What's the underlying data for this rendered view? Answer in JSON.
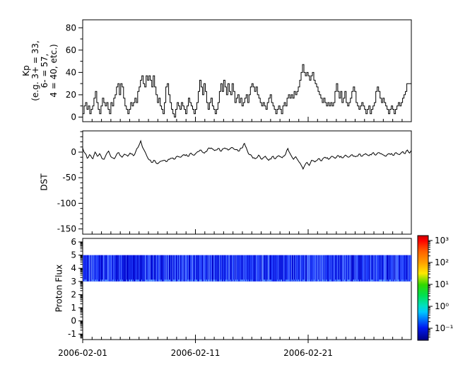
{
  "figure": {
    "background": "#ffffff",
    "labels": {
      "kp_lines": [
        "Kp",
        "(e.g. 3+ = 33,",
        "6- = 57,",
        "4 = 40, etc.)"
      ],
      "dst": "DST",
      "proton_flux": "Proton Flux"
    },
    "x_axis": {
      "tick_labels": [
        "2006-02-01",
        "2006-02-11",
        "2006-02-21"
      ],
      "tick_days": [
        0,
        10,
        20
      ],
      "span_days": 29.15
    }
  },
  "chart_data": [
    {
      "type": "line",
      "name": "kp-index",
      "style": "step",
      "line_color": "#000000",
      "ylabel": "Kp (e.g. 3+ = 33, 6- = 57, 4 = 40, etc.)",
      "yticks": [
        0,
        20,
        40,
        60,
        80
      ],
      "yminor_step": 10,
      "ylim": [
        -4.1,
        87.1
      ],
      "x_start": "2006-02-01",
      "x_step_hours": 3,
      "values": [
        3,
        10,
        13,
        7,
        10,
        3,
        7,
        10,
        17,
        23,
        13,
        7,
        3,
        10,
        17,
        13,
        10,
        13,
        7,
        3,
        13,
        10,
        17,
        20,
        27,
        30,
        20,
        30,
        27,
        17,
        10,
        7,
        3,
        7,
        13,
        10,
        13,
        17,
        13,
        23,
        27,
        33,
        37,
        30,
        27,
        37,
        33,
        37,
        33,
        27,
        37,
        27,
        20,
        13,
        17,
        10,
        7,
        3,
        13,
        27,
        30,
        20,
        13,
        7,
        3,
        0,
        7,
        13,
        10,
        7,
        13,
        10,
        7,
        3,
        10,
        17,
        13,
        10,
        7,
        3,
        7,
        13,
        23,
        33,
        27,
        20,
        30,
        23,
        13,
        7,
        13,
        17,
        10,
        7,
        3,
        7,
        13,
        23,
        30,
        23,
        33,
        27,
        20,
        30,
        23,
        20,
        30,
        23,
        13,
        17,
        20,
        13,
        17,
        10,
        13,
        17,
        20,
        13,
        20,
        27,
        30,
        27,
        23,
        27,
        20,
        17,
        13,
        10,
        13,
        10,
        7,
        13,
        17,
        20,
        13,
        10,
        7,
        3,
        7,
        10,
        7,
        3,
        10,
        13,
        10,
        17,
        20,
        17,
        20,
        17,
        23,
        20,
        23,
        27,
        33,
        40,
        47,
        40,
        37,
        40,
        37,
        33,
        37,
        40,
        33,
        30,
        27,
        23,
        20,
        17,
        13,
        17,
        13,
        10,
        13,
        10,
        13,
        10,
        13,
        23,
        30,
        23,
        17,
        23,
        13,
        17,
        23,
        13,
        10,
        13,
        17,
        23,
        27,
        23,
        13,
        10,
        7,
        10,
        13,
        10,
        7,
        3,
        7,
        10,
        3,
        7,
        10,
        13,
        23,
        27,
        23,
        17,
        13,
        17,
        13,
        10,
        7,
        3,
        7,
        10,
        7,
        3,
        7,
        10,
        13,
        10,
        13,
        17,
        20,
        23,
        30,
        30,
        30
      ]
    },
    {
      "type": "line",
      "name": "dst-index",
      "line_color": "#000000",
      "ylabel": "DST",
      "yticks": [
        0,
        -50,
        -100,
        -150
      ],
      "yminor_step": 10,
      "ylim": [
        -160.2,
        41.4
      ],
      "x_unit": "days since 2006-02-01",
      "points": [
        [
          0,
          8
        ],
        [
          0.2,
          -2
        ],
        [
          0.4,
          -12
        ],
        [
          0.6,
          -5
        ],
        [
          0.9,
          -13
        ],
        [
          1.1,
          0
        ],
        [
          1.3,
          -8
        ],
        [
          1.5,
          -3
        ],
        [
          1.7,
          -12
        ],
        [
          1.9,
          -14
        ],
        [
          2.1,
          -4
        ],
        [
          2.3,
          2
        ],
        [
          2.5,
          -9
        ],
        [
          2.8,
          -13
        ],
        [
          3,
          -5
        ],
        [
          3.2,
          -1
        ],
        [
          3.5,
          -10
        ],
        [
          3.7,
          -4
        ],
        [
          4,
          -8
        ],
        [
          4.2,
          -2
        ],
        [
          4.5,
          -7
        ],
        [
          4.7,
          1
        ],
        [
          4.9,
          9
        ],
        [
          5.05,
          16
        ],
        [
          5.15,
          22
        ],
        [
          5.3,
          10
        ],
        [
          5.5,
          2
        ],
        [
          5.7,
          -8
        ],
        [
          5.9,
          -15
        ],
        [
          6.1,
          -20
        ],
        [
          6.3,
          -16
        ],
        [
          6.5,
          -21
        ],
        [
          6.7,
          -22
        ],
        [
          6.9,
          -18
        ],
        [
          7.2,
          -16
        ],
        [
          7.5,
          -18
        ],
        [
          7.8,
          -12
        ],
        [
          8.1,
          -14
        ],
        [
          8.4,
          -8
        ],
        [
          8.7,
          -10
        ],
        [
          9,
          -5
        ],
        [
          9.3,
          -8
        ],
        [
          9.6,
          -2
        ],
        [
          9.9,
          -6
        ],
        [
          10.2,
          1
        ],
        [
          10.5,
          4
        ],
        [
          10.8,
          -2
        ],
        [
          11.1,
          6
        ],
        [
          11.4,
          8
        ],
        [
          11.7,
          3
        ],
        [
          12,
          7
        ],
        [
          12.3,
          2
        ],
        [
          12.6,
          8
        ],
        [
          12.9,
          4
        ],
        [
          13.2,
          9
        ],
        [
          13.5,
          5
        ],
        [
          13.8,
          2
        ],
        [
          14.1,
          8
        ],
        [
          14.35,
          17
        ],
        [
          14.5,
          9
        ],
        [
          14.7,
          -3
        ],
        [
          15,
          -8
        ],
        [
          15.3,
          -13
        ],
        [
          15.6,
          -6
        ],
        [
          15.9,
          -14
        ],
        [
          16.2,
          -8
        ],
        [
          16.5,
          -16
        ],
        [
          16.8,
          -9
        ],
        [
          17.1,
          -13
        ],
        [
          17.4,
          -7
        ],
        [
          17.7,
          -11
        ],
        [
          18,
          -4
        ],
        [
          18.2,
          7
        ],
        [
          18.35,
          -1
        ],
        [
          18.5,
          -7
        ],
        [
          18.7,
          -14
        ],
        [
          18.9,
          -9
        ],
        [
          19.1,
          -16
        ],
        [
          19.3,
          -22
        ],
        [
          19.55,
          -33
        ],
        [
          19.7,
          -26
        ],
        [
          19.9,
          -20
        ],
        [
          20.1,
          -26
        ],
        [
          20.3,
          -16
        ],
        [
          20.6,
          -19
        ],
        [
          20.9,
          -13
        ],
        [
          21.2,
          -17
        ],
        [
          21.5,
          -10
        ],
        [
          21.8,
          -14
        ],
        [
          22.1,
          -8
        ],
        [
          22.4,
          -12
        ],
        [
          22.7,
          -7
        ],
        [
          23,
          -11
        ],
        [
          23.3,
          -6
        ],
        [
          23.6,
          -10
        ],
        [
          23.9,
          -5
        ],
        [
          24.2,
          -9
        ],
        [
          24.5,
          -4
        ],
        [
          24.8,
          -8
        ],
        [
          25.1,
          -3
        ],
        [
          25.4,
          -7
        ],
        [
          25.7,
          -2
        ],
        [
          26,
          -6
        ],
        [
          26.3,
          -1
        ],
        [
          26.6,
          -5
        ],
        [
          26.9,
          -8
        ],
        [
          27.2,
          -3
        ],
        [
          27.5,
          -6
        ],
        [
          27.8,
          -1
        ],
        [
          28.1,
          -5
        ],
        [
          28.4,
          1
        ],
        [
          28.6,
          -3
        ],
        [
          28.8,
          4
        ],
        [
          29,
          -2
        ],
        [
          29.15,
          3
        ]
      ],
      "jitter_amp": [
        1.3,
        1.0
      ]
    },
    {
      "type": "heatmap",
      "name": "proton-flux",
      "ylabel": "Proton Flux",
      "yticks": [
        6,
        5,
        4,
        3,
        2,
        1,
        0,
        -1
      ],
      "yscale_minor": "log-decade",
      "ylim": [
        -1.42,
        6.27
      ],
      "band": {
        "y_range": [
          3,
          5
        ],
        "description": "continuous low-intensity proton flux band with vertical streaks",
        "approx_flux_range": [
          0.1,
          0.5
        ]
      },
      "palette": [
        "#0000c8",
        "#2040ff",
        "#5c80ff",
        "#66aaff"
      ]
    }
  ],
  "colorbar": {
    "orientation": "vertical",
    "scale": "log",
    "range_bottom_to_top": [
      0.1,
      1000
    ],
    "tick_labels": [
      "10³",
      "10²",
      "10¹",
      "10⁰",
      "10⁻¹"
    ],
    "tick_values": [
      1000,
      100,
      10,
      1,
      0.1
    ],
    "gradient_top_to_bottom": [
      "#c80000",
      "#ff0000",
      "#ff6000",
      "#ffa000",
      "#ffe800",
      "#30d800",
      "#00e050",
      "#00e0c0",
      "#00c8ff",
      "#0080ff",
      "#0018f0",
      "#000080"
    ]
  }
}
